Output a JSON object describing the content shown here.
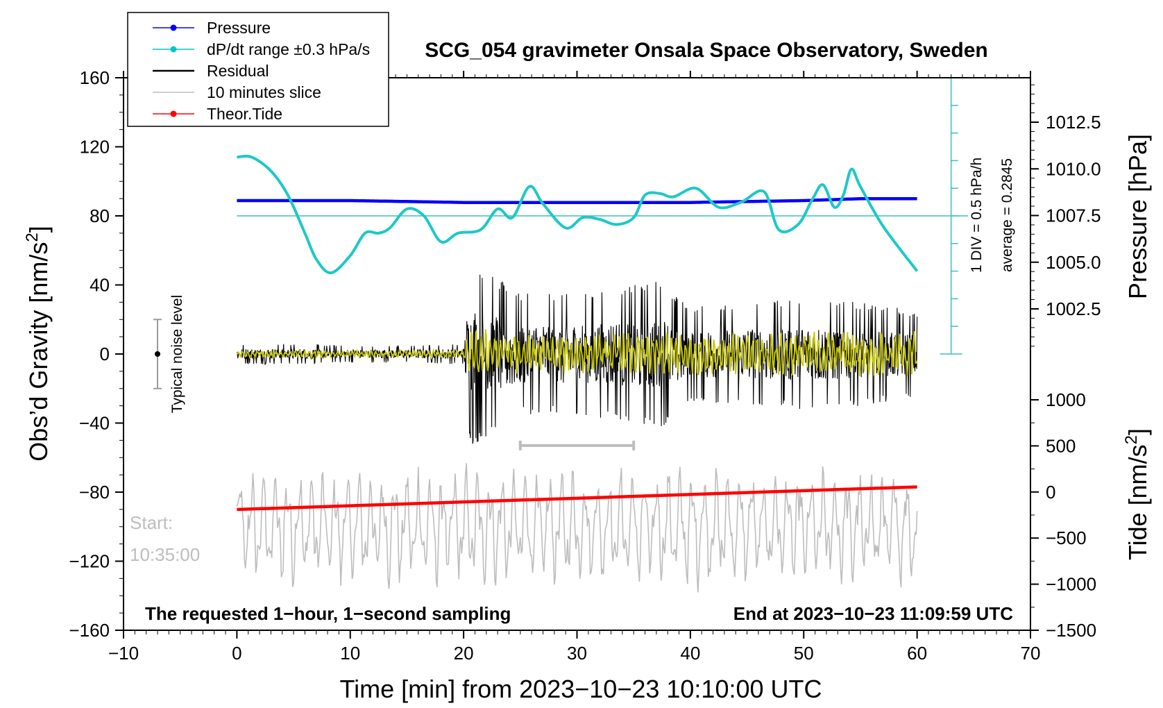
{
  "chart_data": {
    "type": "line",
    "title": "SCG_054 gravimeter Onsala Space Observatory, Sweden",
    "xlabel": "Time [min] from 2023−10−23 10:10:00 UTC",
    "ylabel_left_main": "Obs’d Gravity [nm/s",
    "ylabel_left_sup": "2",
    "ylabel_left_tail": "]",
    "ylabel_right_top": "Pressure [hPa]",
    "ylabel_right_bottom_main": "Tide [nm/s",
    "ylabel_right_bottom_sup": "2",
    "ylabel_right_bottom_tail": "]",
    "xlim": [
      -10,
      70
    ],
    "ylim_left": [
      -160,
      160
    ],
    "x_ticks": [
      "−10",
      "0",
      "10",
      "20",
      "30",
      "40",
      "50",
      "60",
      "70"
    ],
    "x_tick_values": [
      -10,
      0,
      10,
      20,
      30,
      40,
      50,
      60,
      70
    ],
    "y_left_ticks": [
      "160",
      "120",
      "80",
      "40",
      "0",
      "−40",
      "−80",
      "−120",
      "−160"
    ],
    "y_left_tick_values": [
      160,
      120,
      80,
      40,
      0,
      -40,
      -80,
      -120,
      -160
    ],
    "pressure_ticks": [
      "1012.5",
      "1010.0",
      "1007.5",
      "1005.0",
      "1002.5"
    ],
    "pressure_tick_values": [
      1012.5,
      1010.0,
      1007.5,
      1005.0,
      1002.5
    ],
    "pressure_range_hpa": [
      1000.0,
      1015.0
    ],
    "tide_ticks": [
      "1000",
      "500",
      "0",
      "−500",
      "−1000",
      "−1500"
    ],
    "tide_tick_values": [
      1000,
      500,
      0,
      -500,
      -1000,
      -1500
    ],
    "tide_range": [
      -1500,
      1000
    ],
    "legend": [
      {
        "label": "Pressure",
        "color": "#0000ff",
        "marker": true
      },
      {
        "label": "dP/dt range ±0.3 hPa/s",
        "color": "#00c8c8",
        "marker": true
      },
      {
        "label": "Residual",
        "color": "#000000",
        "marker": false
      },
      {
        "label": "10 minutes slice",
        "color": "#bdbdbd",
        "marker": false
      },
      {
        "label": "Theor.Tide",
        "color": "#ff0000",
        "marker": true
      }
    ],
    "pressure": {
      "color": "#0000ff",
      "x": [
        0,
        10,
        20,
        24,
        30,
        40,
        50,
        55,
        60
      ],
      "values": [
        1008.3,
        1008.3,
        1008.2,
        1008.2,
        1008.2,
        1008.2,
        1008.3,
        1008.4,
        1008.4
      ]
    },
    "dpdt": {
      "color": "#1ec8c8",
      "ref_color": "#38c0c0",
      "baseline": 80,
      "x": [
        0,
        1.3,
        3,
        4.5,
        6,
        7,
        8.3,
        10,
        11.3,
        12.5,
        13.5,
        15,
        16.5,
        18,
        19.5,
        21.5,
        23,
        24.3,
        25.8,
        27,
        29,
        30.5,
        32,
        33.5,
        35,
        36,
        37.3,
        38.5,
        40.5,
        42.5,
        44.5,
        46.5,
        47.8,
        49.5,
        50.8,
        51.7,
        52.7,
        53.5,
        54.2,
        55,
        57,
        60
      ],
      "values": [
        114,
        114,
        106,
        92,
        70,
        55,
        47,
        57,
        70,
        70,
        73,
        84,
        80,
        65,
        70,
        72,
        84,
        79,
        97,
        87,
        73,
        79,
        78,
        75,
        79,
        92,
        93,
        91,
        96,
        85,
        88,
        94,
        72,
        75,
        90,
        98,
        85,
        92,
        107,
        97,
        74,
        48
      ]
    },
    "residual": {
      "color": "#000000",
      "x": [
        0,
        5,
        10,
        15,
        20,
        20.3,
        20.7,
        25,
        30,
        35,
        37,
        40,
        45,
        50,
        55,
        60
      ],
      "amplitude": [
        6,
        6,
        5,
        5,
        6,
        45,
        55,
        35,
        35,
        40,
        45,
        28,
        30,
        32,
        30,
        25
      ]
    },
    "residual_smoothed": {
      "color": "#c8c800",
      "x": [
        0,
        5,
        10,
        15,
        20,
        20.3,
        20.7,
        25,
        30,
        35,
        37,
        40,
        45,
        50,
        55,
        60
      ],
      "amplitude": [
        2,
        2,
        2,
        2,
        2,
        15,
        15,
        12,
        11,
        12,
        13,
        12,
        12,
        13,
        13,
        14
      ]
    },
    "ten_minutes_slice": {
      "color": "#bdbdbd",
      "start_label": "Start:",
      "start_time": "10:35:00",
      "x_range": [
        25,
        35
      ],
      "marker_y": -53,
      "center": -100,
      "amplitude": 32
    },
    "tide": {
      "color": "#ff0000",
      "x": [
        0,
        60
      ],
      "values": [
        -190,
        55
      ]
    },
    "noise_bar": {
      "label": "Typical noise level",
      "x": -7,
      "y_center": 0,
      "y_range": [
        -20,
        20
      ]
    },
    "scale_annotation": {
      "div": "1 DIV = 0.5 hPa/h",
      "average": "average = 0.2845",
      "x": 63,
      "y_range": [
        0,
        160
      ],
      "divisions": 10
    },
    "footer_left": "The requested 1−hour, 1−second sampling",
    "footer_right": "End at 2023−10−23 11:09:59 UTC"
  }
}
